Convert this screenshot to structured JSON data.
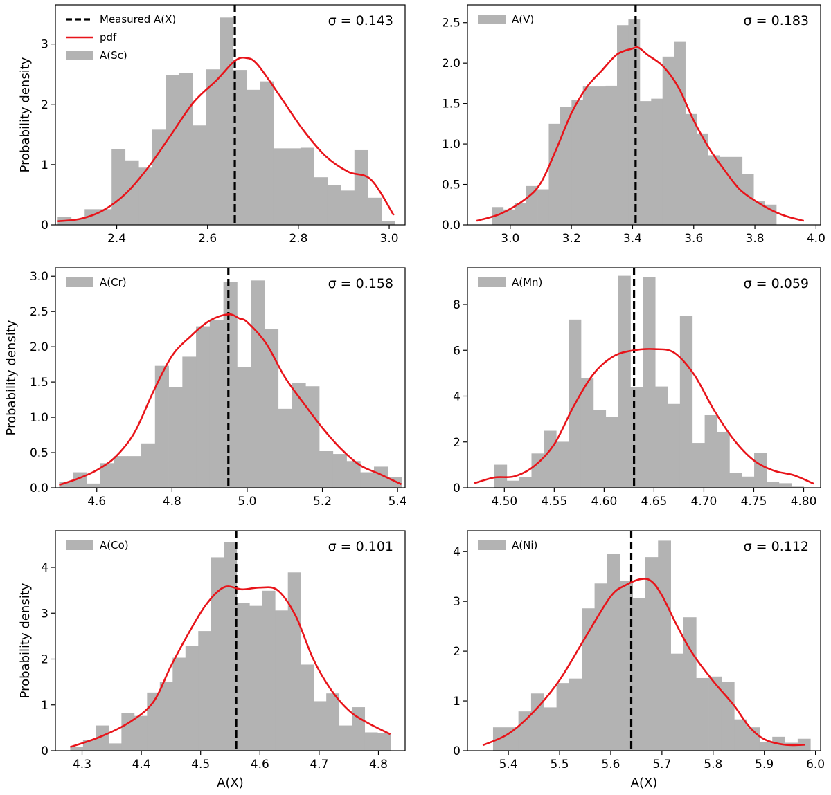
{
  "figure": {
    "ylabel": "Probability density",
    "xlabel": "A(X)",
    "legend_common": {
      "measured_label": "Measured A(X)",
      "pdf_label": "pdf"
    }
  },
  "colors": {
    "bar": "#b3b3b3",
    "pdf": "#e8141a",
    "measured": "#000000",
    "axis": "#000000"
  },
  "chart_data": [
    {
      "type": "bar",
      "id": "sc",
      "legend_label": "A(Sc)",
      "legend_full": true,
      "legend_position": "top-left",
      "sigma_text": "σ = 0.143",
      "show_ylabel": true,
      "show_xlabel": false,
      "xlim": [
        2.265,
        3.035
      ],
      "ylim": [
        0,
        3.65
      ],
      "xticks": [
        2.4,
        2.6,
        2.8,
        3.0
      ],
      "xtick_labels": [
        "2.4",
        "2.6",
        "2.8",
        "3.0"
      ],
      "yticks": [
        0,
        1,
        2,
        3
      ],
      "ytick_labels": [
        "0",
        "1",
        "2",
        "3"
      ],
      "measured": 2.66,
      "bin_edges": [
        2.27,
        2.2997,
        2.3294,
        2.3591,
        2.3888,
        2.4185,
        2.4482,
        2.4779,
        2.5076,
        2.5373,
        2.567,
        2.5967,
        2.6264,
        2.6561,
        2.6858,
        2.7155,
        2.7452,
        2.7749,
        2.8046,
        2.8343,
        2.864,
        2.8937,
        2.9234,
        2.9531,
        2.9828,
        3.0125
      ],
      "bin_values": [
        0.13,
        0.1,
        0.26,
        0.26,
        1.26,
        1.07,
        0.95,
        1.58,
        2.48,
        2.52,
        1.65,
        2.58,
        3.44,
        2.57,
        2.24,
        2.38,
        1.27,
        1.27,
        1.28,
        0.79,
        0.66,
        0.57,
        1.24,
        0.45,
        0.06
      ],
      "pdf_x": [
        2.27,
        2.32,
        2.37,
        2.42,
        2.47,
        2.52,
        2.57,
        2.62,
        2.66,
        2.685,
        2.71,
        2.76,
        2.81,
        2.86,
        2.91,
        2.96,
        3.01
      ],
      "pdf_y": [
        0.06,
        0.1,
        0.24,
        0.52,
        0.96,
        1.5,
        2.04,
        2.4,
        2.72,
        2.77,
        2.66,
        2.13,
        1.58,
        1.14,
        0.88,
        0.75,
        0.16
      ]
    },
    {
      "type": "bar",
      "id": "v",
      "legend_label": "A(V)",
      "legend_full": false,
      "legend_position": "top-left",
      "sigma_text": "σ = 0.183",
      "show_ylabel": false,
      "show_xlabel": false,
      "xlim": [
        2.86,
        4.015
      ],
      "ylim": [
        0,
        2.72
      ],
      "xticks": [
        3.0,
        3.2,
        3.4,
        3.6,
        3.8,
        4.0
      ],
      "xtick_labels": [
        "3.0",
        "3.2",
        "3.4",
        "3.6",
        "3.8",
        "4.0"
      ],
      "yticks": [
        0,
        0.5,
        1.0,
        1.5,
        2.0,
        2.5
      ],
      "ytick_labels": [
        "0.0",
        "0.5",
        "1.0",
        "1.5",
        "2.0",
        "2.5"
      ],
      "measured": 3.41,
      "bin_edges": [
        2.94,
        2.9772,
        3.0144,
        3.0516,
        3.0888,
        3.126,
        3.1632,
        3.2004,
        3.2376,
        3.2748,
        3.312,
        3.3492,
        3.3864,
        3.4236,
        3.4608,
        3.498,
        3.5352,
        3.5724,
        3.6096,
        3.6468,
        3.684,
        3.7212,
        3.7584,
        3.7956,
        3.8328,
        3.87
      ],
      "bin_values": [
        0.22,
        0.19,
        0.27,
        0.48,
        0.44,
        1.25,
        1.46,
        1.54,
        1.71,
        1.71,
        1.72,
        2.47,
        2.54,
        1.53,
        1.56,
        2.08,
        2.27,
        1.37,
        1.13,
        0.86,
        0.84,
        0.84,
        0.63,
        0.29,
        0.25
      ],
      "pdf_x": [
        2.89,
        2.97,
        3.05,
        3.1,
        3.15,
        3.2,
        3.25,
        3.3,
        3.35,
        3.4,
        3.42,
        3.45,
        3.5,
        3.55,
        3.6,
        3.65,
        3.7,
        3.75,
        3.8,
        3.85,
        3.9,
        3.96
      ],
      "pdf_y": [
        0.05,
        0.14,
        0.32,
        0.52,
        0.93,
        1.38,
        1.7,
        1.91,
        2.11,
        2.18,
        2.19,
        2.1,
        1.96,
        1.7,
        1.29,
        0.95,
        0.68,
        0.44,
        0.3,
        0.19,
        0.11,
        0.05
      ]
    },
    {
      "type": "bar",
      "id": "cr",
      "legend_label": "A(Cr)",
      "legend_full": false,
      "legend_position": "top-left",
      "sigma_text": "σ = 0.158",
      "show_ylabel": true,
      "show_xlabel": false,
      "xlim": [
        4.49,
        5.42
      ],
      "ylim": [
        0,
        3.12
      ],
      "xticks": [
        4.6,
        4.8,
        5.0,
        5.2,
        5.4
      ],
      "xtick_labels": [
        "4.6",
        "4.8",
        "5.0",
        "5.2",
        "5.4"
      ],
      "yticks": [
        0,
        0.5,
        1.0,
        1.5,
        2.0,
        2.5,
        3.0
      ],
      "ytick_labels": [
        "0.0",
        "0.5",
        "1.0",
        "1.5",
        "2.0",
        "2.5",
        "3.0"
      ],
      "measured": 4.95,
      "bin_edges": [
        4.5,
        4.5364,
        4.5728,
        4.6092,
        4.6456,
        4.682,
        4.7184,
        4.7548,
        4.7912,
        4.8276,
        4.864,
        4.9004,
        4.9368,
        4.9732,
        5.0096,
        5.046,
        5.0824,
        5.1188,
        5.1552,
        5.1916,
        5.228,
        5.2644,
        5.3008,
        5.3372,
        5.3736,
        5.41
      ],
      "bin_values": [
        0.08,
        0.22,
        0.06,
        0.35,
        0.45,
        0.45,
        0.63,
        1.73,
        1.43,
        1.86,
        2.29,
        2.38,
        2.92,
        1.71,
        2.94,
        2.25,
        1.12,
        1.49,
        1.44,
        0.52,
        0.48,
        0.38,
        0.22,
        0.3,
        0.15
      ],
      "pdf_x": [
        4.5,
        4.55,
        4.6,
        4.65,
        4.7,
        4.75,
        4.8,
        4.85,
        4.9,
        4.95,
        4.98,
        5.0,
        5.05,
        5.1,
        5.15,
        5.2,
        5.25,
        5.3,
        5.35,
        5.41
      ],
      "pdf_y": [
        0.04,
        0.13,
        0.25,
        0.44,
        0.78,
        1.36,
        1.87,
        2.15,
        2.37,
        2.46,
        2.4,
        2.35,
        2.05,
        1.57,
        1.2,
        0.85,
        0.55,
        0.32,
        0.2,
        0.05
      ]
    },
    {
      "type": "bar",
      "id": "mn",
      "legend_label": "A(Mn)",
      "legend_full": false,
      "legend_position": "top-left",
      "sigma_text": "σ = 0.059",
      "show_ylabel": false,
      "show_xlabel": false,
      "xlim": [
        4.463,
        4.817
      ],
      "ylim": [
        0,
        9.6
      ],
      "xticks": [
        4.5,
        4.55,
        4.6,
        4.65,
        4.7,
        4.75,
        4.8
      ],
      "xtick_labels": [
        "4.50",
        "4.55",
        "4.60",
        "4.65",
        "4.70",
        "4.75",
        "4.80"
      ],
      "yticks": [
        0,
        2,
        4,
        6,
        8
      ],
      "ytick_labels": [
        "0",
        "2",
        "4",
        "6",
        "8"
      ],
      "measured": 4.63,
      "bin_edges": [
        4.49,
        4.5024,
        4.5148,
        4.5272,
        4.5396,
        4.552,
        4.5644,
        4.5768,
        4.5892,
        4.6016,
        4.614,
        4.6264,
        4.6388,
        4.6512,
        4.6636,
        4.676,
        4.6884,
        4.7008,
        4.7132,
        4.7256,
        4.738,
        4.7504,
        4.7628,
        4.7752,
        4.7876,
        4.8
      ],
      "bin_values": [
        1.01,
        0.31,
        0.48,
        1.5,
        2.49,
        2.01,
        7.34,
        4.79,
        3.4,
        3.1,
        9.25,
        4.4,
        9.18,
        4.42,
        3.66,
        7.51,
        1.96,
        3.17,
        2.42,
        0.65,
        0.49,
        1.52,
        0.25,
        0.2,
        0.05
      ],
      "pdf_x": [
        4.47,
        4.49,
        4.51,
        4.53,
        4.55,
        4.57,
        4.59,
        4.61,
        4.63,
        4.65,
        4.67,
        4.69,
        4.71,
        4.73,
        4.75,
        4.77,
        4.79,
        4.81
      ],
      "pdf_y": [
        0.2,
        0.45,
        0.5,
        0.95,
        1.9,
        3.6,
        5.0,
        5.75,
        6.0,
        6.05,
        5.9,
        4.95,
        3.4,
        2.1,
        1.2,
        0.75,
        0.55,
        0.18
      ]
    },
    {
      "type": "bar",
      "id": "co",
      "legend_label": "A(Co)",
      "legend_full": false,
      "legend_position": "top-left",
      "sigma_text": "σ = 0.101",
      "show_ylabel": true,
      "show_xlabel": true,
      "xlim": [
        4.255,
        4.845
      ],
      "ylim": [
        0,
        4.8
      ],
      "xticks": [
        4.3,
        4.4,
        4.5,
        4.6,
        4.7,
        4.8
      ],
      "xtick_labels": [
        "4.3",
        "4.4",
        "4.5",
        "4.6",
        "4.7",
        "4.8"
      ],
      "yticks": [
        0,
        1,
        2,
        3,
        4
      ],
      "ytick_labels": [
        "0",
        "1",
        "2",
        "3",
        "4"
      ],
      "measured": 4.56,
      "bin_edges": [
        4.28,
        4.3016,
        4.3232,
        4.3448,
        4.3664,
        4.388,
        4.4096,
        4.4312,
        4.4528,
        4.4744,
        4.496,
        4.5176,
        4.5392,
        4.5608,
        4.5824,
        4.604,
        4.6256,
        4.6472,
        4.6688,
        4.6904,
        4.712,
        4.7336,
        4.7552,
        4.7768,
        4.7984,
        4.82
      ],
      "bin_values": [
        0.08,
        0.24,
        0.55,
        0.16,
        0.83,
        0.76,
        1.27,
        1.5,
        2.03,
        2.28,
        2.61,
        4.22,
        4.55,
        3.23,
        3.16,
        3.49,
        3.06,
        3.89,
        1.88,
        1.08,
        1.25,
        0.55,
        0.95,
        0.4,
        0.38
      ],
      "pdf_x": [
        4.28,
        4.33,
        4.38,
        4.42,
        4.45,
        4.48,
        4.51,
        4.54,
        4.57,
        4.6,
        4.63,
        4.66,
        4.69,
        4.72,
        4.75,
        4.78,
        4.82
      ],
      "pdf_y": [
        0.08,
        0.3,
        0.62,
        1.06,
        1.85,
        2.57,
        3.2,
        3.57,
        3.52,
        3.56,
        3.5,
        2.95,
        2.0,
        1.33,
        0.88,
        0.62,
        0.36
      ]
    },
    {
      "type": "bar",
      "id": "ni",
      "legend_label": "A(Ni)",
      "legend_full": false,
      "legend_position": "top-left",
      "sigma_text": "σ = 0.112",
      "show_ylabel": false,
      "show_xlabel": true,
      "xlim": [
        5.32,
        6.01
      ],
      "ylim": [
        0,
        4.42
      ],
      "xticks": [
        5.4,
        5.5,
        5.6,
        5.7,
        5.8,
        5.9,
        6.0
      ],
      "xtick_labels": [
        "5.4",
        "5.5",
        "5.6",
        "5.7",
        "5.8",
        "5.9",
        "6.0"
      ],
      "yticks": [
        0,
        1,
        2,
        3,
        4
      ],
      "ytick_labels": [
        "0",
        "1",
        "2",
        "3",
        "4"
      ],
      "measured": 5.64,
      "bin_edges": [
        5.37,
        5.3948,
        5.4196,
        5.4444,
        5.4692,
        5.494,
        5.5188,
        5.5436,
        5.5684,
        5.5932,
        5.618,
        5.6428,
        5.6676,
        5.6924,
        5.7172,
        5.742,
        5.7668,
        5.7916,
        5.8164,
        5.8412,
        5.866,
        5.8908,
        5.9156,
        5.9404,
        5.9652,
        5.99
      ],
      "bin_values": [
        0.47,
        0.47,
        0.79,
        1.15,
        0.87,
        1.36,
        1.45,
        2.86,
        3.36,
        3.95,
        3.41,
        3.07,
        3.89,
        4.22,
        1.95,
        2.68,
        1.46,
        1.49,
        1.38,
        0.63,
        0.47,
        0.17,
        0.28,
        0.16,
        0.24
      ],
      "pdf_x": [
        5.35,
        5.4,
        5.45,
        5.5,
        5.55,
        5.6,
        5.63,
        5.66,
        5.68,
        5.7,
        5.73,
        5.76,
        5.8,
        5.84,
        5.87,
        5.9,
        5.94,
        5.98
      ],
      "pdf_y": [
        0.11,
        0.34,
        0.79,
        1.42,
        2.27,
        3.1,
        3.33,
        3.45,
        3.4,
        3.12,
        2.5,
        1.95,
        1.4,
        0.92,
        0.49,
        0.23,
        0.12,
        0.12
      ]
    }
  ]
}
